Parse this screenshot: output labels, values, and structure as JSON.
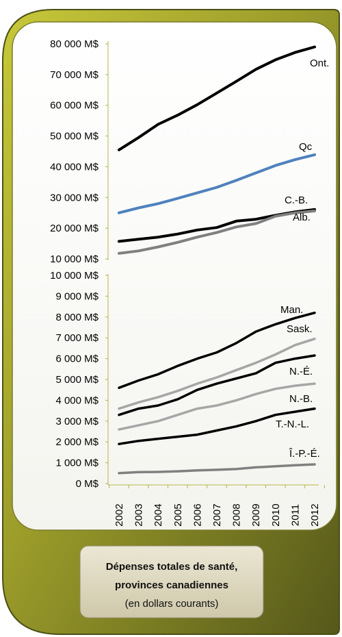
{
  "chart_data": [
    {
      "type": "line",
      "title": "",
      "xlabel": "",
      "ylabel": "",
      "x": [
        2002,
        2003,
        2004,
        2005,
        2006,
        2007,
        2008,
        2009,
        2010,
        2011,
        2012
      ],
      "ylim": [
        10000,
        80000
      ],
      "yticks": [
        "10 000 M$",
        "20 000 M$",
        "30 000 M$",
        "40 000 M$",
        "50 000 M$",
        "60 000 M$",
        "70 000 M$",
        "80 000 M$"
      ],
      "grid": false,
      "series": [
        {
          "name": "Ont.",
          "color": "#000000",
          "values": [
            45500,
            49500,
            53800,
            56800,
            60200,
            64000,
            67800,
            71700,
            74800,
            77200,
            79000
          ]
        },
        {
          "name": "Qc",
          "color": "#4f81bd",
          "values": [
            25000,
            26600,
            28000,
            29700,
            31500,
            33300,
            35600,
            38000,
            40400,
            42300,
            43900
          ]
        },
        {
          "name": "C.-B.",
          "color": "#000000",
          "values": [
            15700,
            16400,
            17100,
            18100,
            19400,
            20200,
            22300,
            22900,
            24200,
            25300,
            26100
          ]
        },
        {
          "name": "Alb.",
          "color": "#808080",
          "values": [
            11800,
            12600,
            13900,
            15400,
            17100,
            18600,
            20400,
            21500,
            23900,
            25000,
            25600
          ]
        }
      ]
    },
    {
      "type": "line",
      "title": "",
      "xlabel": "",
      "ylabel": "",
      "x": [
        2002,
        2003,
        2004,
        2005,
        2006,
        2007,
        2008,
        2009,
        2010,
        2011,
        2012
      ],
      "ylim": [
        0,
        10000
      ],
      "yticks": [
        "0 M$",
        "1 000 M$",
        "2 000 M$",
        "3 000 M$",
        "4 000 M$",
        "5 000 M$",
        "6 000 M$",
        "7 000 M$",
        "8 000 M$",
        "9 000 M$",
        "10 000 M$"
      ],
      "grid": false,
      "series": [
        {
          "name": "Man.",
          "color": "#000000",
          "values": [
            4600,
            4950,
            5250,
            5650,
            6000,
            6300,
            6750,
            7300,
            7650,
            7950,
            8200
          ]
        },
        {
          "name": "Sask.",
          "color": "#a6a6a6",
          "values": [
            3600,
            3900,
            4150,
            4450,
            4800,
            5100,
            5450,
            5800,
            6200,
            6650,
            6950
          ]
        },
        {
          "name": "N.-É.",
          "color": "#000000",
          "values": [
            3300,
            3600,
            3750,
            4050,
            4500,
            4800,
            5050,
            5300,
            5800,
            6000,
            6150
          ]
        },
        {
          "name": "N.-B.",
          "color": "#a6a6a6",
          "values": [
            2600,
            2800,
            3000,
            3300,
            3600,
            3750,
            4000,
            4300,
            4550,
            4700,
            4800
          ]
        },
        {
          "name": "T.-N.-L.",
          "color": "#000000",
          "values": [
            1900,
            2050,
            2150,
            2250,
            2350,
            2550,
            2750,
            3000,
            3300,
            3450,
            3600
          ]
        },
        {
          "name": "Î.-P.-É.",
          "color": "#808080",
          "values": [
            500,
            550,
            560,
            590,
            630,
            660,
            700,
            780,
            830,
            880,
            920
          ]
        }
      ]
    }
  ],
  "caption": {
    "line1": "Dépenses totales de santé,",
    "line2": "provinces canadiennes",
    "line3": "(en dollars courants)"
  },
  "colors": {
    "frame_dark": "#6e7223",
    "frame_light": "#c2c23a",
    "caption_fill": "#d9d4bd"
  }
}
